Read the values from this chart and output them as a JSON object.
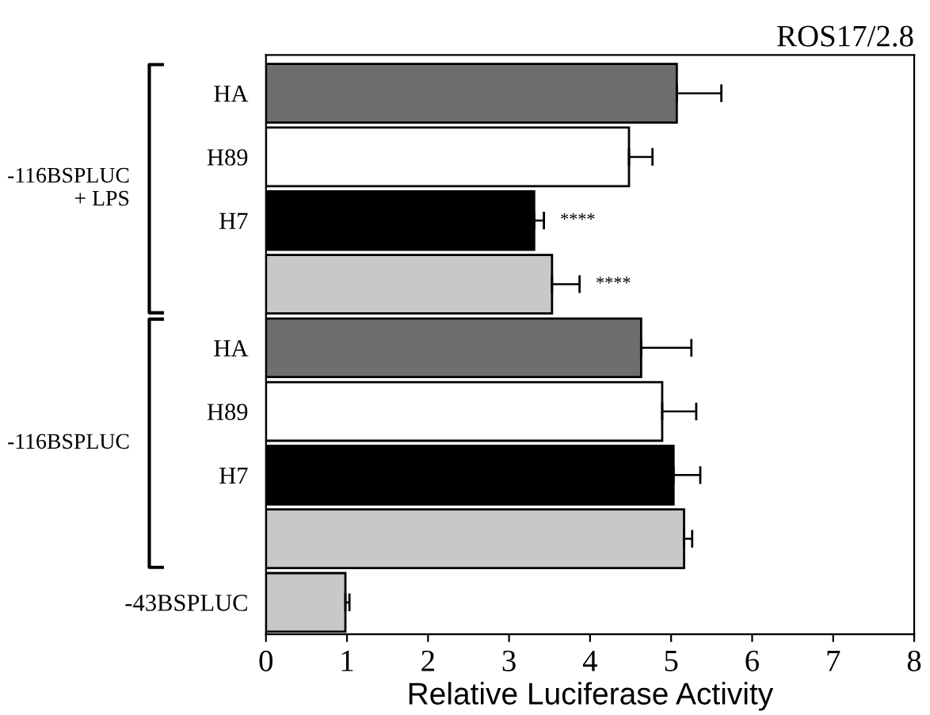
{
  "chart_data": {
    "type": "bar",
    "orientation": "horizontal",
    "title": "ROS17/2.8",
    "xlabel": "Relative Luciferase Activity",
    "categories": [
      "HA",
      "H89",
      "H7",
      null,
      "HA",
      "H89",
      "H7",
      null,
      "-43BSPLUC"
    ],
    "values": [
      5.07,
      4.48,
      3.31,
      3.53,
      4.63,
      4.89,
      5.03,
      5.16,
      0.98
    ],
    "errors": [
      0.55,
      0.29,
      0.12,
      0.34,
      0.62,
      0.42,
      0.33,
      0.1,
      0.05
    ],
    "value_labels": [
      null,
      null,
      "****",
      "****",
      null,
      null,
      null,
      null,
      null
    ],
    "colors": [
      "#6e6e6e",
      "#ffffff",
      "#000000",
      "#c8c8c8",
      "#6e6e6e",
      "#ffffff",
      "#000000",
      "#c8c8c8",
      "#c8c8c8"
    ],
    "annotations": [
      "-116BSPLUC\n+ LPS",
      "-116BSPLUC"
    ],
    "xlim": [
      0,
      8
    ],
    "xticks": [
      0,
      1,
      2,
      3,
      4,
      5,
      6,
      7,
      8
    ],
    "grid": false,
    "legend": false
  }
}
